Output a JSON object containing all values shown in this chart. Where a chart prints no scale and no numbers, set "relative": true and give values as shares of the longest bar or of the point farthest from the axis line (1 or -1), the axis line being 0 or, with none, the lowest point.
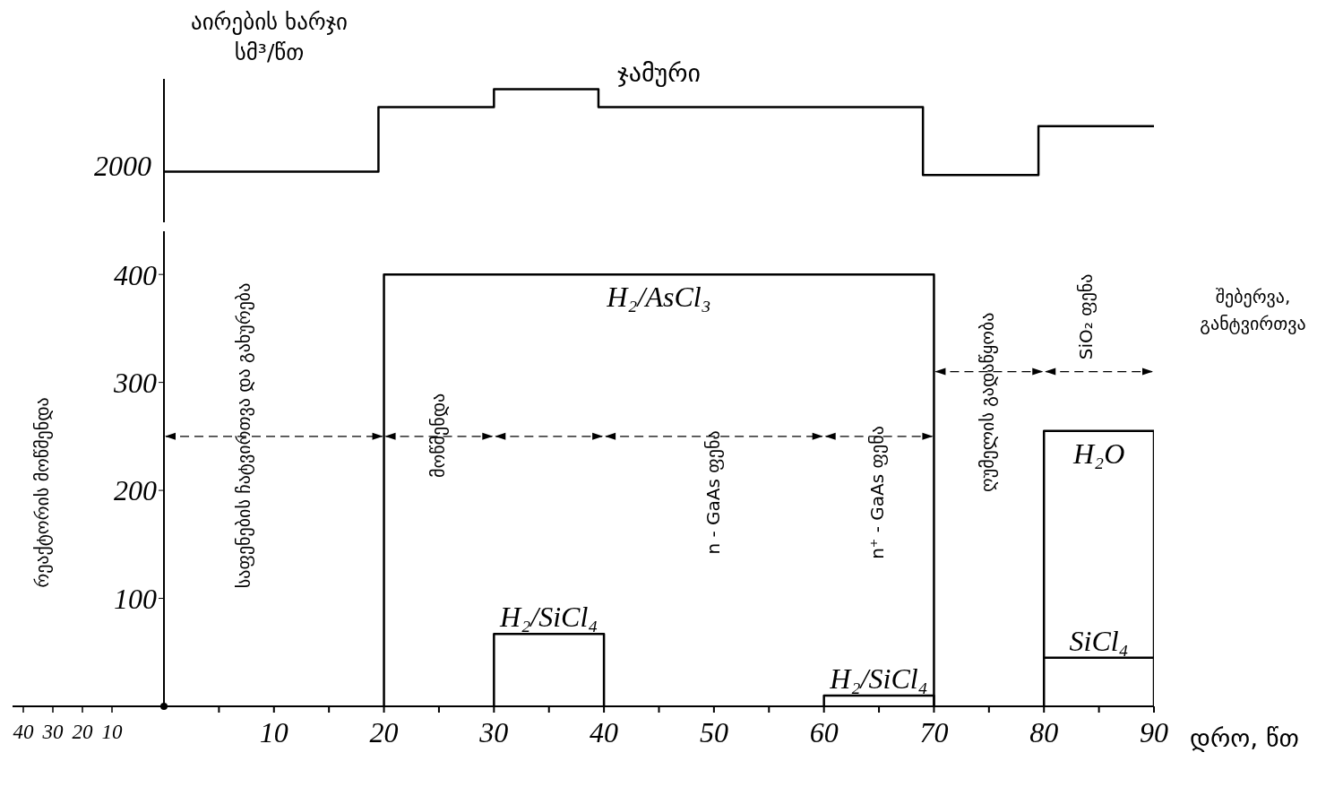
{
  "chart_data": [
    {
      "type": "step",
      "relative": true,
      "ylabel": "აირების ხარჯი სმ³/წთ",
      "xlim": [
        0,
        90
      ],
      "ref_lines": [
        {
          "axis": "x",
          "value": 0
        }
      ],
      "annotations": [
        {
          "text": "2000",
          "x": 0,
          "y": 0.04
        }
      ],
      "series": [
        {
          "name": "ჯამური",
          "color": "#000000",
          "x": [
            0,
            19.5,
            30,
            39.5,
            69,
            79.5,
            90
          ],
          "values": [
            0.04,
            0.79,
            1,
            0.79,
            0,
            0.57,
            0.57
          ]
        }
      ]
    },
    {
      "type": "line",
      "xlabel": "დრო, წთ",
      "xlim": [
        0,
        90
      ],
      "ylim": [
        0,
        440
      ],
      "xticks": [
        {
          "value": 5,
          "label": null
        },
        10,
        {
          "value": 15,
          "label": null
        },
        20,
        {
          "value": 25,
          "label": null
        },
        30,
        {
          "value": 35,
          "label": null
        },
        40,
        {
          "value": 45,
          "label": null
        },
        50,
        {
          "value": 55,
          "label": null
        },
        60,
        {
          "value": 65,
          "label": null
        },
        70,
        {
          "value": 75,
          "label": null
        },
        80,
        {
          "value": 85,
          "label": null
        },
        90
      ],
      "yticks": [
        100,
        200,
        300,
        400
      ],
      "series": [
        {
          "name": "H₂/AsCl₃",
          "color": "#000000",
          "x": [
            20,
            20,
            70,
            70
          ],
          "values": [
            0,
            400,
            400,
            0
          ]
        },
        {
          "name": "H₂/SiCl₄",
          "color": "#000000",
          "x": [
            30,
            30,
            40,
            40
          ],
          "values": [
            0,
            67,
            67,
            0
          ]
        },
        {
          "name": "H₂/SiCl₄",
          "color": "#000000",
          "x": [
            60,
            60,
            70,
            70
          ],
          "values": [
            0,
            10,
            10,
            0
          ]
        },
        {
          "name": "H₂O",
          "color": "#000000",
          "x": [
            80,
            80,
            90,
            90
          ],
          "values": [
            0,
            255,
            255,
            0
          ]
        },
        {
          "name": "SiCl₄",
          "color": "#000000",
          "x": [
            80,
            80,
            90,
            90
          ],
          "values": [
            45,
            45,
            45,
            45
          ]
        }
      ],
      "annotations": [
        "საფენების ჩატვირთვა და გახურება",
        "მოწმენდა",
        "n - GaAs ფენა",
        "n⁺ - GaAs ფენა",
        "ღუმელის გადაწყობა",
        "SiO₂ ფენა",
        "შებერვა, განტვირთვა",
        "რეაქტორის მოწმენდა",
        "40",
        "30",
        "20",
        "10"
      ]
    }
  ]
}
